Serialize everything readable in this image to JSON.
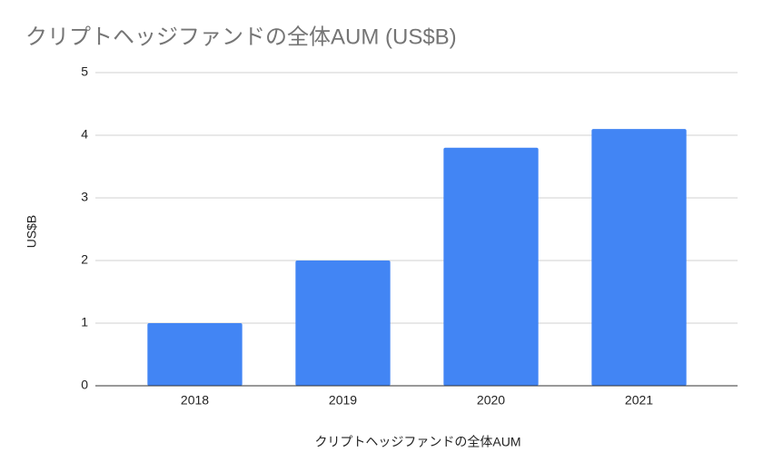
{
  "chart_data": {
    "type": "bar",
    "title": "クリプトヘッジファンドの全体AUM (US$B)",
    "x_label": "クリプトヘッジファンドの全体AUM",
    "y_label": "US$B",
    "categories": [
      "2018",
      "2019",
      "2020",
      "2021"
    ],
    "values": [
      1,
      2,
      3.8,
      4.1
    ],
    "color": "#4285f4",
    "ylim": [
      0,
      5
    ],
    "yticks": [
      0,
      1,
      2,
      3,
      4,
      5
    ],
    "grid": true
  }
}
